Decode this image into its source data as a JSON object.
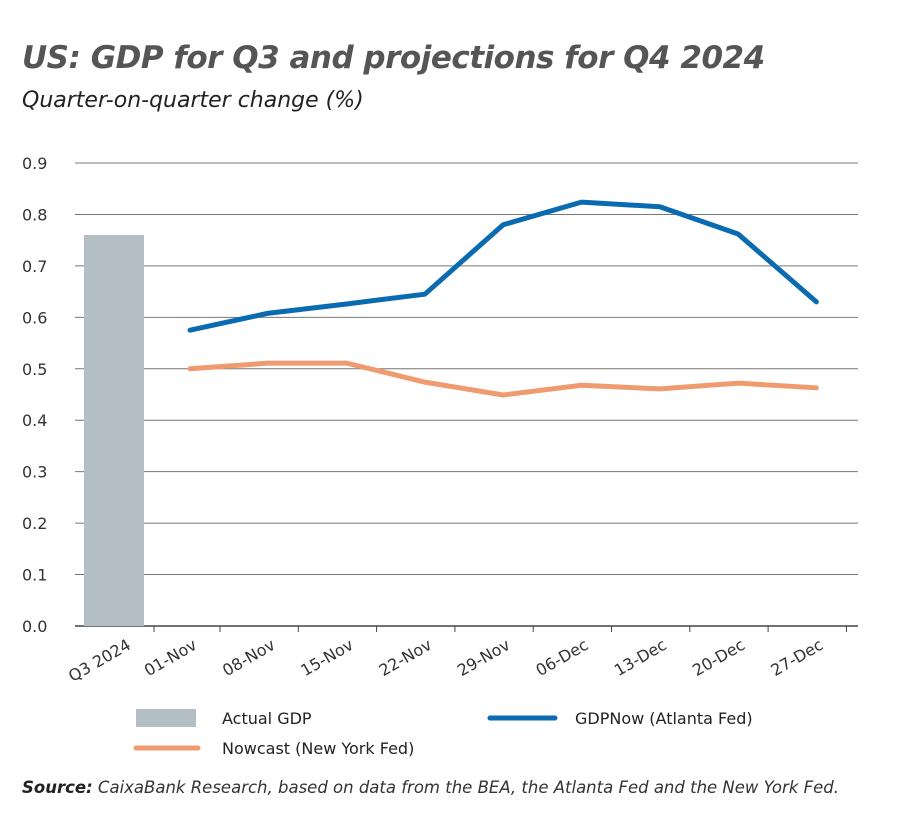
{
  "chart_data": {
    "type": "bar+line",
    "title": "US: GDP for Q3 and projections for Q4 2024",
    "subtitle": "Quarter-on-quarter change (%)",
    "ylim": [
      0,
      0.9
    ],
    "yticks": [
      "0.0",
      "0.1",
      "0.2",
      "0.3",
      "0.4",
      "0.5",
      "0.6",
      "0.7",
      "0.8",
      "0.9"
    ],
    "grid": true,
    "bar": {
      "name": "Actual GDP",
      "category": "Q3 2024",
      "value": 0.76,
      "color": "#b3bec5"
    },
    "categories": [
      "01-Nov",
      "08-Nov",
      "15-Nov",
      "22-Nov",
      "29-Nov",
      "06-Dec",
      "13-Dec",
      "20-Dec",
      "27-Dec"
    ],
    "series": [
      {
        "name": "GDPNow (Atlanta Fed)",
        "color": "#0a6bb0",
        "values": [
          0.575,
          0.608,
          0.626,
          0.645,
          0.78,
          0.824,
          0.815,
          0.762,
          0.63
        ]
      },
      {
        "name": "Nowcast (New York Fed)",
        "color": "#f09a70",
        "values": [
          0.5,
          0.511,
          0.511,
          0.474,
          0.449,
          0.468,
          0.461,
          0.472,
          0.463
        ]
      }
    ],
    "legend_position": "bottom"
  },
  "source_label": "Source:",
  "source_text": " CaixaBank Research, based on data from the BEA, the Atlanta Fed and the New York Fed."
}
